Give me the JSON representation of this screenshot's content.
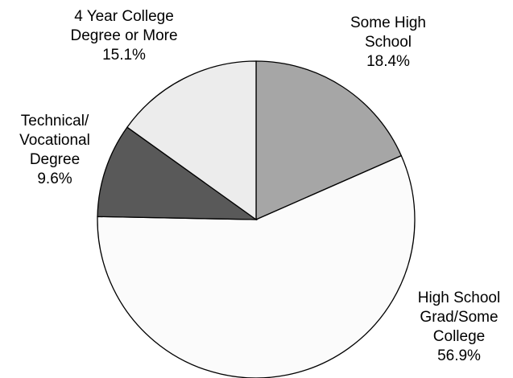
{
  "chart_data": {
    "type": "pie",
    "title": "",
    "slices": [
      {
        "name_lines": [
          "Some High",
          "School"
        ],
        "value": 18.4,
        "value_label": "18.4%",
        "color": "#a6a6a6"
      },
      {
        "name_lines": [
          "High School",
          "Grad/Some",
          "College"
        ],
        "value": 56.9,
        "value_label": "56.9%",
        "color": "#fbfbfb"
      },
      {
        "name_lines": [
          "Technical/",
          "Vocational",
          "Degree"
        ],
        "value": 9.6,
        "value_label": "9.6%",
        "color": "#595959"
      },
      {
        "name_lines": [
          "4 Year College",
          "Degree or More"
        ],
        "value": 15.1,
        "value_label": "15.1%",
        "color": "#ececec"
      }
    ],
    "start_angle_deg": 0,
    "direction": "clockwise",
    "legend": "none",
    "labels": "outside"
  }
}
